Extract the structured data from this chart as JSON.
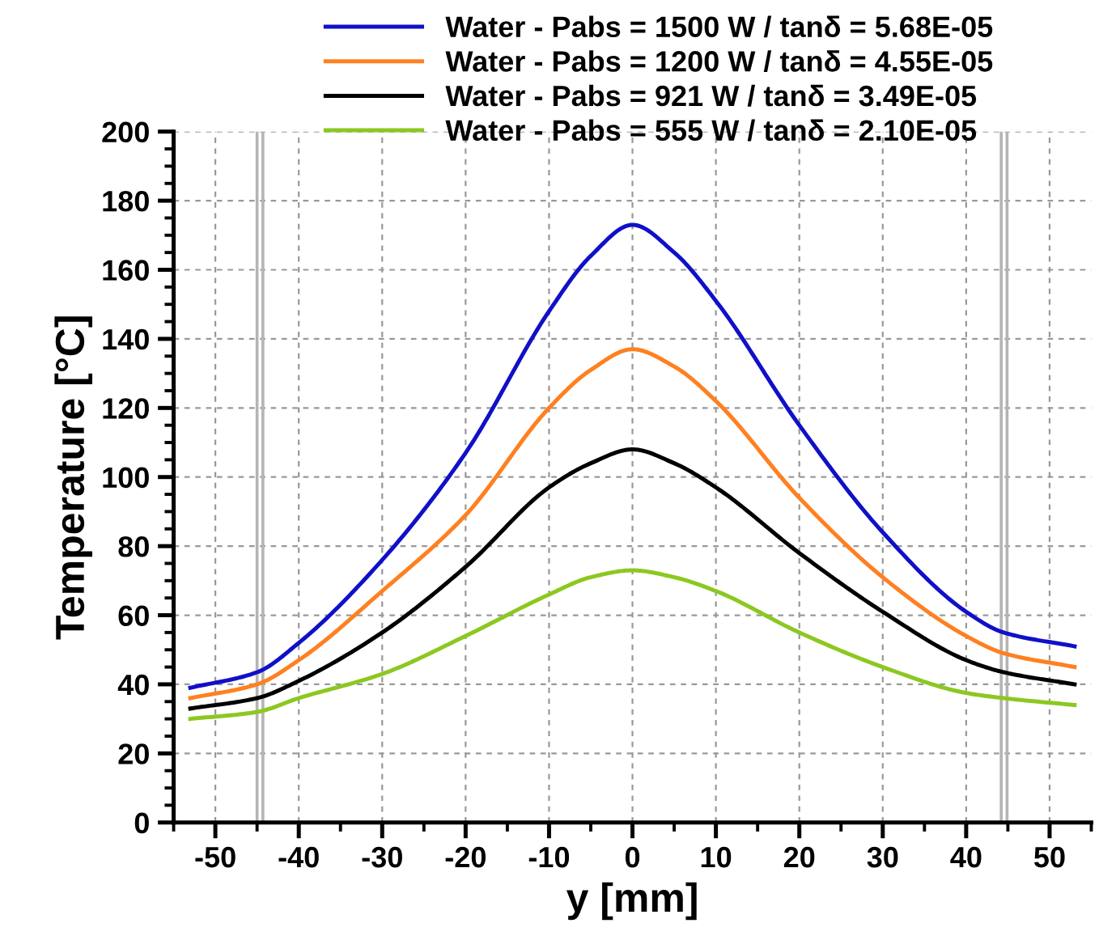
{
  "chart_data": {
    "type": "line",
    "xlabel": "y [mm]",
    "ylabel": "Temperature [°C]",
    "x": [
      -53,
      -45,
      -40,
      -30,
      -20,
      -10,
      -5,
      0,
      5,
      10,
      20,
      30,
      40,
      44.5,
      53
    ],
    "series": [
      {
        "name": "Water - Pabs = 1500 W / tanδ = 5.68E-05",
        "color": "#1010c8",
        "values": [
          39,
          43.5,
          52,
          76,
          107,
          148,
          164,
          173,
          165,
          151,
          115,
          84,
          61,
          55,
          51
        ]
      },
      {
        "name": "Water - Pabs = 1200 W / tanδ = 4.55E-05",
        "color": "#ff8020",
        "values": [
          36,
          40,
          47,
          67,
          89,
          120,
          131,
          137,
          132,
          122,
          94,
          71,
          54,
          49,
          45
        ]
      },
      {
        "name": "Water - Pabs = 921 W / tanδ = 3.49E-05",
        "color": "#000000",
        "values": [
          33,
          36,
          41,
          55,
          74,
          97,
          104,
          108,
          104,
          97,
          78,
          61,
          47,
          43.5,
          40
        ]
      },
      {
        "name": "Water - Pabs = 555 W / tanδ = 2.10E-05",
        "color": "#8cc820",
        "values": [
          30,
          32,
          36,
          43,
          54,
          66,
          71,
          73,
          71,
          67,
          55,
          45,
          37.5,
          36,
          34
        ]
      }
    ],
    "xlim": [
      -55,
      55
    ],
    "ylim": [
      0,
      200
    ],
    "xticks": [
      -50,
      -40,
      -30,
      -20,
      -10,
      0,
      10,
      20,
      30,
      40,
      50
    ],
    "yticks": [
      0,
      20,
      40,
      60,
      80,
      100,
      120,
      140,
      160,
      180,
      200
    ],
    "ref_lines": [
      {
        "axis": "x",
        "value": -45,
        "color": "#b4b4b4"
      },
      {
        "axis": "x",
        "value": -44.3,
        "color": "#b4b4b4"
      },
      {
        "axis": "x",
        "value": 44.2,
        "color": "#b4b4b4"
      },
      {
        "axis": "x",
        "value": 44.9,
        "color": "#b4b4b4"
      }
    ],
    "grid": true,
    "legend": "top",
    "marker": "none",
    "line_style": "solid"
  }
}
